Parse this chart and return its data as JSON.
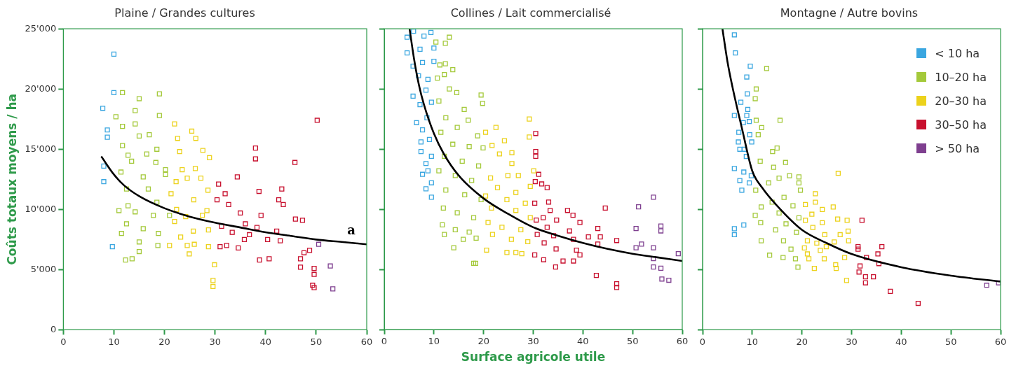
{
  "chart_data": [
    {
      "type": "scatter",
      "title": "Plaine / Grandes cultures",
      "ylabel": "Coûts totaux moyens / ha",
      "marker": "square",
      "grid": false,
      "legend": false,
      "xlim": [
        0,
        60
      ],
      "xticks": [
        0,
        10,
        20,
        30,
        40,
        50,
        60
      ],
      "ylim": [
        0,
        25000
      ],
      "yticks": [
        0,
        {
          "value": 5000,
          "label": "5'000"
        },
        {
          "value": 10000,
          "label": "10'000"
        },
        {
          "value": 15000,
          "label": "15'000"
        },
        {
          "value": 20000,
          "label": "20'000"
        },
        {
          "value": 25000,
          "label": "25'000"
        }
      ],
      "annotations": [
        "a"
      ],
      "series": [
        {
          "color": "#3aa6e0",
          "x": [
            10,
            10,
            7.8,
            8.7,
            8.7,
            8,
            8,
            9.7
          ],
          "values": [
            22900,
            19700,
            18400,
            16600,
            16000,
            13600,
            12300,
            6900
          ]
        },
        {
          "color": "#a4c93a",
          "x": [
            11.7,
            15,
            19,
            10.4,
            14.2,
            19,
            11.7,
            14.2,
            15,
            17,
            11.7,
            18.5,
            12.8,
            16.5,
            13.5,
            18.3,
            20.2,
            11.4,
            15.8,
            20.2,
            12.5,
            16.8,
            12.8,
            18.5,
            11,
            14.2,
            17.8,
            21,
            12.5,
            15.8,
            18.8,
            11.5,
            15,
            18.7,
            12.3,
            13.6,
            15
          ],
          "values": [
            19700,
            19200,
            19600,
            17700,
            18200,
            17800,
            16900,
            17100,
            16100,
            16200,
            15300,
            15000,
            14500,
            14600,
            14000,
            13900,
            13300,
            13100,
            12700,
            12900,
            11700,
            11700,
            10300,
            10600,
            9900,
            9800,
            9500,
            9500,
            8800,
            8400,
            8000,
            8000,
            7300,
            7000,
            5800,
            5900,
            6500
          ]
        },
        {
          "color": "#ecd21c",
          "x": [
            22,
            25.4,
            22.6,
            26.2,
            23,
            27.6,
            28.9,
            23.5,
            26.1,
            22.3,
            24.5,
            27.2,
            21.3,
            25.8,
            28.6,
            22.4,
            28.4,
            24.2,
            27.5,
            22,
            25.7,
            23.2,
            28.7,
            21,
            24.5,
            25.9,
            24.9,
            28.7,
            29.9,
            29.6,
            29.6
          ],
          "values": [
            17100,
            16500,
            15900,
            15900,
            14800,
            14900,
            14300,
            13300,
            13400,
            12300,
            12600,
            12600,
            11300,
            10800,
            11600,
            10000,
            9900,
            9400,
            9500,
            9000,
            8200,
            7700,
            8300,
            7000,
            7000,
            7100,
            6300,
            6900,
            5400,
            4100,
            3600
          ]
        },
        {
          "color": "#c8102e",
          "x": [
            30.7,
            34.4,
            38,
            38,
            45.8,
            43.2,
            38.7,
            42.6,
            32,
            32.7,
            30.4,
            35,
            39.1,
            43.5,
            47.3,
            45.9,
            36,
            31.3,
            38.3,
            42.2,
            33.4,
            36.8,
            40.4,
            42.9,
            35.8,
            31,
            34.6,
            32.3,
            40.7,
            38.8,
            48.7,
            47.6,
            46.9,
            46.9,
            49.6,
            49.6,
            49.3,
            49.6,
            50.2
          ],
          "values": [
            12100,
            12700,
            15100,
            14200,
            13900,
            11700,
            11500,
            10800,
            11300,
            10400,
            10800,
            9700,
            9500,
            10400,
            9100,
            9200,
            8800,
            8600,
            8500,
            8200,
            8100,
            7900,
            7500,
            7400,
            7500,
            6900,
            6800,
            7000,
            5900,
            5800,
            6600,
            6400,
            5900,
            5200,
            5100,
            4600,
            3700,
            3500,
            17400
          ]
        },
        {
          "color": "#7e3f8f",
          "x": [
            50.5,
            52.8,
            53.3
          ],
          "values": [
            7100,
            5300,
            3400
          ]
        },
        {
          "type": "line",
          "marker": "none",
          "color": "#000000",
          "x": [
            7.5,
            10,
            12,
            15,
            20,
            25,
            30,
            35,
            40,
            45,
            50,
            55,
            60
          ],
          "values": [
            14400,
            12900,
            12000,
            11100,
            10100,
            9400,
            8900,
            8500,
            8100,
            7800,
            7500,
            7300,
            7100
          ]
        }
      ]
    },
    {
      "type": "scatter",
      "title": "Collines / Lait commercialisé",
      "xlabel": "Surface agricole utile",
      "marker": "square",
      "grid": false,
      "legend": false,
      "tick_labels": "x",
      "xlim": [
        0,
        60
      ],
      "xticks": [
        0,
        10,
        20,
        30,
        40,
        50,
        60
      ],
      "ylim": [
        0,
        25000
      ],
      "yticks": [
        {
          "value": 0,
          "label": null
        },
        {
          "value": 5000,
          "label": null
        },
        {
          "value": 10000,
          "label": null
        },
        {
          "value": 15000,
          "label": null
        },
        {
          "value": 20000,
          "label": null
        },
        {
          "value": 25000,
          "label": null
        }
      ],
      "series": [
        {
          "color": "#3aa6e0",
          "x": [
            4.6,
            5.9,
            8,
            9.4,
            4.6,
            7.2,
            10,
            5.8,
            7.7,
            10,
            6.9,
            8.8,
            5.8,
            8.4,
            7.2,
            9.5,
            6.5,
            8.6,
            7.7,
            7.4,
            9.1,
            7.4,
            8.4,
            9.5,
            7.7,
            9.5,
            8.4,
            9.5,
            8.8
          ],
          "values": [
            24300,
            24800,
            24400,
            24700,
            23000,
            23300,
            23400,
            21900,
            22200,
            22300,
            21100,
            20800,
            19400,
            19900,
            18700,
            18900,
            17200,
            17600,
            16600,
            15600,
            15800,
            14800,
            13800,
            14400,
            12900,
            12200,
            11700,
            11000,
            13200
          ]
        },
        {
          "color": "#a4c93a",
          "x": [
            10.4,
            12.3,
            13.1,
            11.2,
            12.3,
            13.8,
            12.1,
            10.7,
            13.1,
            14.6,
            19.5,
            19.8,
            11,
            16.1,
            16.9,
            12.4,
            14.7,
            18.8,
            11.4,
            13.8,
            17.1,
            19.9,
            12.1,
            15.7,
            19,
            11,
            14.3,
            17.6,
            12.4,
            16.2,
            19.5,
            11.9,
            14.7,
            18,
            11.7,
            14.3,
            17.1,
            18.5,
            12.1,
            15.9,
            14,
            18,
            18.4
          ],
          "values": [
            23900,
            23800,
            24300,
            22000,
            22100,
            21600,
            21200,
            20900,
            20000,
            19700,
            19500,
            18800,
            19000,
            18300,
            17400,
            17600,
            16800,
            16100,
            16400,
            15400,
            15200,
            15100,
            14400,
            14000,
            13600,
            13200,
            12800,
            12400,
            11600,
            11200,
            10800,
            10100,
            9700,
            9300,
            8700,
            8300,
            8100,
            7600,
            7900,
            7500,
            6800,
            5500,
            5500
          ]
        },
        {
          "color": "#ecd21c",
          "x": [
            29.2,
            29.2,
            22.5,
            20.4,
            24.2,
            21.7,
            25.7,
            23.2,
            25.7,
            30.1,
            27,
            24.9,
            21.4,
            29.4,
            22.8,
            26.5,
            20.4,
            24.7,
            28.4,
            21.6,
            26.5,
            29.4,
            20.9,
            23.7,
            27.5,
            21.8,
            25.6,
            28.9,
            20.6,
            24.7,
            27.7,
            26.5
          ],
          "values": [
            17500,
            16000,
            16800,
            16400,
            15700,
            15300,
            14700,
            14600,
            13800,
            13200,
            12800,
            12800,
            12600,
            11900,
            11800,
            11400,
            11100,
            10800,
            10500,
            10100,
            9900,
            9300,
            8900,
            8500,
            8300,
            7900,
            7500,
            7300,
            6600,
            6400,
            6300,
            6400
          ]
        },
        {
          "color": "#c8102e",
          "x": [
            30.5,
            30.5,
            30.5,
            31.1,
            30.4,
            31.7,
            32.8,
            33.1,
            30.3,
            33.4,
            36.9,
            44.5,
            38,
            32,
            30.6,
            34.7,
            39.4,
            32.8,
            37.3,
            43,
            30.8,
            34.1,
            41.1,
            43.5,
            38.1,
            46.8,
            32.2,
            43,
            34.6,
            38.7,
            30.3,
            39.4,
            32.1,
            36,
            38.1,
            34.5,
            42.7,
            46.8,
            46.8
          ],
          "values": [
            16300,
            14800,
            14400,
            12900,
            12300,
            12100,
            11800,
            10600,
            10500,
            9900,
            9900,
            10100,
            9500,
            9300,
            9100,
            9100,
            8900,
            8500,
            8200,
            8400,
            7900,
            7800,
            7700,
            7700,
            7500,
            7400,
            7200,
            7100,
            6700,
            6600,
            6200,
            6200,
            5800,
            5700,
            5700,
            5200,
            4500,
            3800,
            3500
          ]
        },
        {
          "color": "#7e3f8f",
          "x": [
            54.2,
            51.2,
            50.7,
            55.7,
            55.7,
            50.7,
            51.8,
            54.2,
            59.2,
            54.2,
            54.2,
            55.7,
            55.9,
            57.3
          ],
          "values": [
            11000,
            10200,
            8400,
            8600,
            8200,
            6800,
            7100,
            6800,
            6300,
            5900,
            5200,
            5100,
            4200,
            4100
          ]
        },
        {
          "type": "line",
          "marker": "none",
          "color": "#000000",
          "x": [
            5.1,
            6,
            7,
            8,
            10,
            12,
            15,
            20,
            25,
            30,
            35,
            40,
            45,
            50,
            55,
            60
          ],
          "values": [
            25000,
            22500,
            20300,
            18700,
            16300,
            14600,
            12800,
            10900,
            9600,
            8500,
            7800,
            7200,
            6700,
            6300,
            6000,
            5700
          ]
        }
      ]
    },
    {
      "type": "scatter",
      "title": "Montagne / Autre bovins",
      "marker": "square",
      "grid": false,
      "legend": "top right",
      "tick_labels": "x",
      "xlim": [
        0,
        60
      ],
      "xticks": [
        0,
        10,
        20,
        30,
        40,
        50,
        60
      ],
      "ylim": [
        0,
        25000
      ],
      "yticks": [
        {
          "value": 0,
          "label": null
        },
        {
          "value": 5000,
          "label": null
        },
        {
          "value": 10000,
          "label": null
        },
        {
          "value": 15000,
          "label": null
        },
        {
          "value": 20000,
          "label": null
        },
        {
          "value": 25000,
          "label": null
        }
      ],
      "series": [
        {
          "name": "< 10 ha",
          "color": "#3aa6e0",
          "x": [
            6.4,
            6.6,
            9.6,
            8.9,
            9,
            7.7,
            9.1,
            6.4,
            8.9,
            8.2,
            9.4,
            7.3,
            9.5,
            7.2,
            9.9,
            8.4,
            7.5,
            8.8,
            6.4,
            8.3,
            9.8,
            7.5,
            9.4,
            7.9,
            8.3,
            6.4,
            6.4
          ],
          "values": [
            24500,
            23000,
            21900,
            21000,
            19600,
            18900,
            18300,
            17800,
            17800,
            17200,
            17300,
            16400,
            16200,
            15600,
            15600,
            15000,
            15000,
            14400,
            13400,
            13100,
            12800,
            12400,
            12200,
            11600,
            8700,
            8400,
            7900
          ]
        },
        {
          "name": "10–20 ha",
          "color": "#a4c93a",
          "x": [
            12.9,
            10.8,
            10.6,
            15.6,
            10.8,
            11.9,
            11.2,
            15,
            14.1,
            16.7,
            11.6,
            14.3,
            17.5,
            19.4,
            15.4,
            13.3,
            19.4,
            10.7,
            16.4,
            19.7,
            14,
            11.8,
            18.2,
            10.6,
            15.4,
            19.4,
            11.7,
            16.8,
            14.7,
            18.9,
            16.3,
            11.8,
            17.8,
            13.5,
            16.2,
            18.7,
            19.2
          ],
          "values": [
            21700,
            20000,
            19200,
            17400,
            17400,
            16800,
            16200,
            15100,
            14800,
            13900,
            14000,
            13500,
            12800,
            12700,
            12600,
            12200,
            12200,
            11600,
            11000,
            11600,
            10600,
            10200,
            10300,
            9500,
            9700,
            9300,
            8900,
            8800,
            8300,
            8100,
            7400,
            7400,
            6700,
            6200,
            6000,
            5900,
            5200
          ]
        },
        {
          "name": "20–30 ha",
          "color": "#ecd21c",
          "x": [
            27.3,
            22.7,
            26.3,
            20.7,
            22.7,
            24.1,
            22,
            27.2,
            29.1,
            24.1,
            20.7,
            29.3,
            22.2,
            27.7,
            24.6,
            29.4,
            21.1,
            26.5,
            23,
            24.9,
            20.5,
            23.7,
            21.1,
            28.6,
            24.5,
            21.4,
            26.8,
            22.5,
            26.9,
            29
          ],
          "values": [
            13000,
            11300,
            10200,
            10400,
            10600,
            10000,
            9600,
            9200,
            9100,
            8900,
            9100,
            8200,
            8500,
            7900,
            7900,
            7400,
            7400,
            7300,
            7200,
            6900,
            6800,
            6600,
            6300,
            6000,
            5900,
            5900,
            5400,
            5100,
            5100,
            4100
          ]
        },
        {
          "name": "30–50 ha",
          "color": "#c8102e",
          "x": [
            32.1,
            31.3,
            31.3,
            36.1,
            35.3,
            33,
            35.5,
            31.7,
            31.5,
            32.8,
            34.4,
            32.8,
            37.8,
            43.4
          ],
          "values": [
            9100,
            6900,
            6700,
            6900,
            6300,
            6000,
            5500,
            5300,
            4800,
            4400,
            4400,
            3900,
            3200,
            2200
          ]
        },
        {
          "name": "> 50 ha",
          "color": "#7e3f8f",
          "x": [
            57.2,
            59.6
          ],
          "values": [
            3700,
            3900
          ]
        },
        {
          "type": "line",
          "marker": "none",
          "color": "#000000",
          "x": [
            4,
            5,
            6,
            8,
            10,
            12,
            15,
            20,
            25,
            30,
            40,
            50,
            60
          ],
          "values": [
            25000,
            22300,
            20200,
            16600,
            13200,
            11800,
            10300,
            8300,
            7200,
            6300,
            5200,
            4500,
            4000
          ]
        }
      ]
    }
  ]
}
